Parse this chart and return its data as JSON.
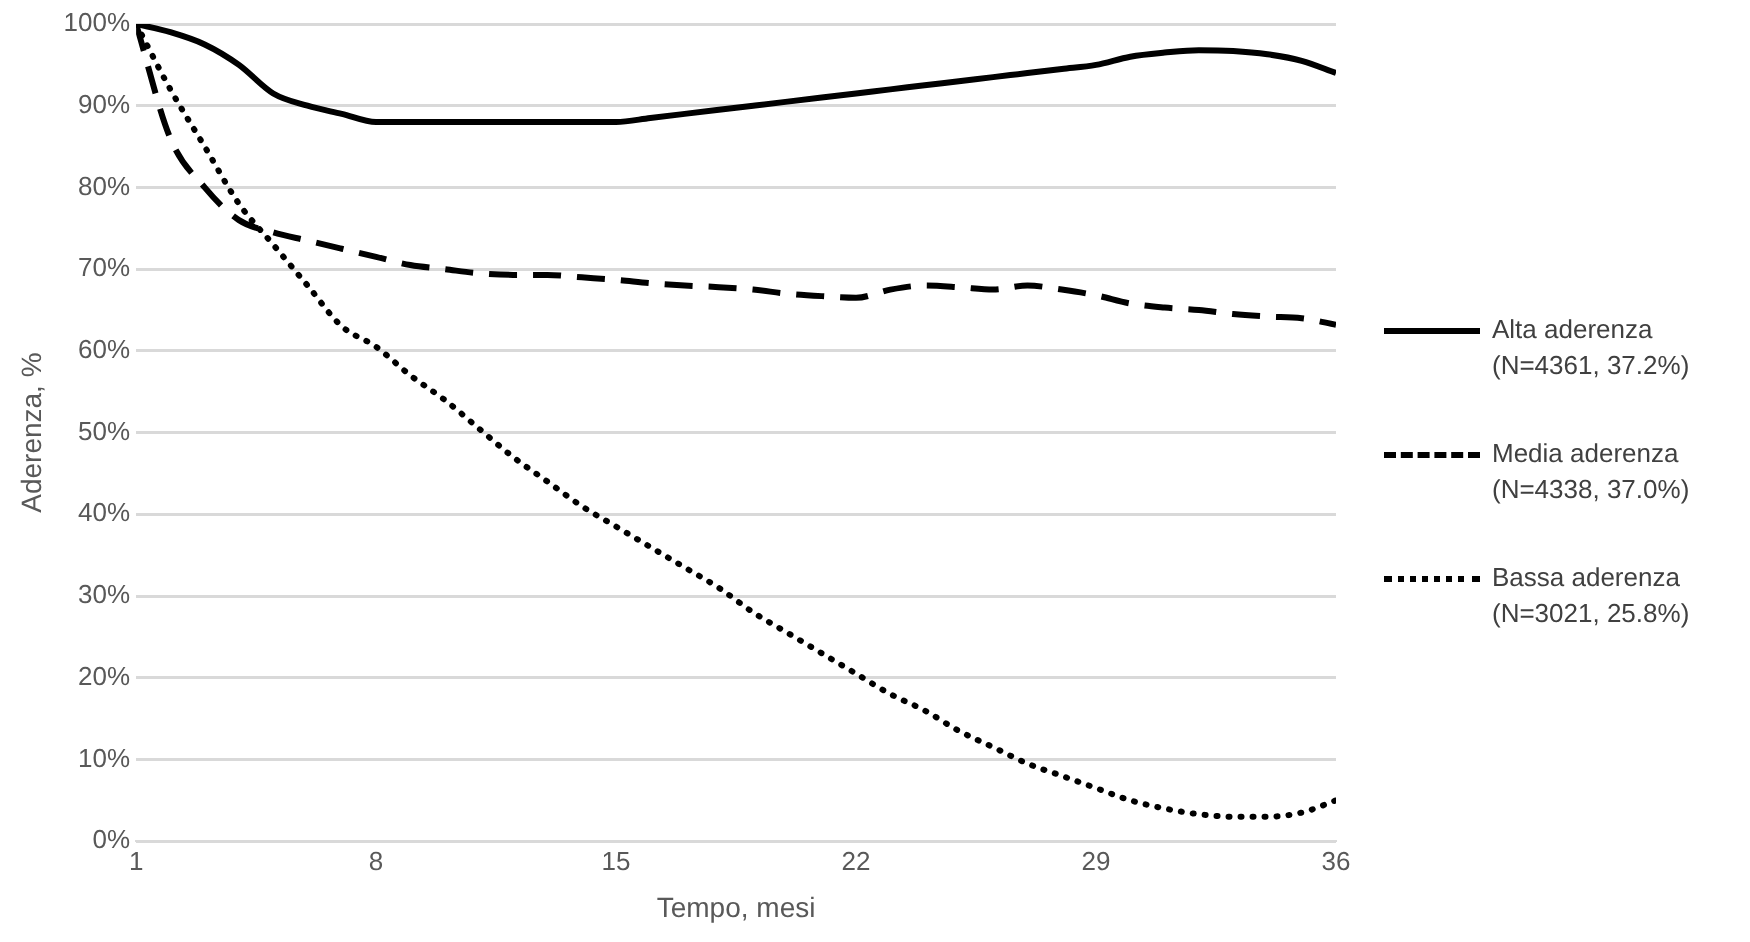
{
  "chart_data": {
    "type": "line",
    "xlabel": "Tempo, mesi",
    "ylabel": "Aderenza, %",
    "xlim": [
      1,
      36
    ],
    "xticks": [
      1,
      8,
      15,
      22,
      29,
      36
    ],
    "ylim": [
      0,
      100
    ],
    "yticks": [
      {
        "value": 0,
        "label": "0%"
      },
      {
        "value": 10,
        "label": "10%"
      },
      {
        "value": 20,
        "label": "20%"
      },
      {
        "value": 30,
        "label": "30%"
      },
      {
        "value": 40,
        "label": "40%"
      },
      {
        "value": 50,
        "label": "50%"
      },
      {
        "value": 60,
        "label": "60%"
      },
      {
        "value": 70,
        "label": "70%"
      },
      {
        "value": 80,
        "label": "80%"
      },
      {
        "value": 90,
        "label": "90%"
      },
      {
        "value": 100,
        "label": "100%"
      }
    ],
    "grid": "y",
    "legend": "right",
    "marker": "none",
    "x": [
      1,
      2,
      3,
      4,
      5,
      6,
      7,
      8,
      9,
      10,
      11,
      12,
      13,
      14,
      15,
      16,
      17,
      18,
      19,
      20,
      21,
      22,
      23,
      24,
      25,
      26,
      27,
      28,
      29,
      30,
      31,
      32,
      33,
      34,
      35,
      36
    ],
    "series": [
      {
        "name": "Alta aderenza (N=4361, 37.2%)",
        "color": "#000000",
        "line_style": "solid",
        "values": [
          100,
          99,
          97.5,
          95,
          91.5,
          90,
          89,
          88,
          88,
          88,
          88,
          88,
          88,
          88,
          88,
          88.5,
          89,
          89.5,
          90,
          90.5,
          91,
          91.5,
          92,
          92.5,
          93,
          93.5,
          94,
          94.5,
          95,
          96,
          96.5,
          96.8,
          96.7,
          96.3,
          95.5,
          94
        ]
      },
      {
        "name": "Media aderenza (N=4338, 37.0%)",
        "color": "#000000",
        "line_style": "dashed",
        "values": [
          100,
          86,
          80,
          76,
          74.5,
          73.5,
          72.5,
          71.5,
          70.5,
          70,
          69.5,
          69.3,
          69.3,
          69,
          68.7,
          68.3,
          68,
          67.8,
          67.5,
          67,
          66.7,
          66.5,
          67.5,
          68,
          67.8,
          67.5,
          68,
          67.5,
          66.8,
          65.8,
          65.3,
          65,
          64.5,
          64.2,
          64,
          63.2
        ]
      },
      {
        "name": "Bassa aderenza (N=3021, 25.8%)",
        "color": "#000000",
        "line_style": "dotted",
        "values": [
          100,
          92,
          85,
          78,
          73,
          68,
          63,
          60.5,
          57,
          54,
          50.5,
          47,
          44,
          41,
          38.5,
          36,
          33.5,
          31,
          28,
          25.5,
          23,
          20.5,
          18,
          16,
          13.5,
          11.5,
          9.5,
          8,
          6.5,
          5,
          4,
          3.3,
          3,
          3,
          3.5,
          5
        ]
      }
    ]
  }
}
